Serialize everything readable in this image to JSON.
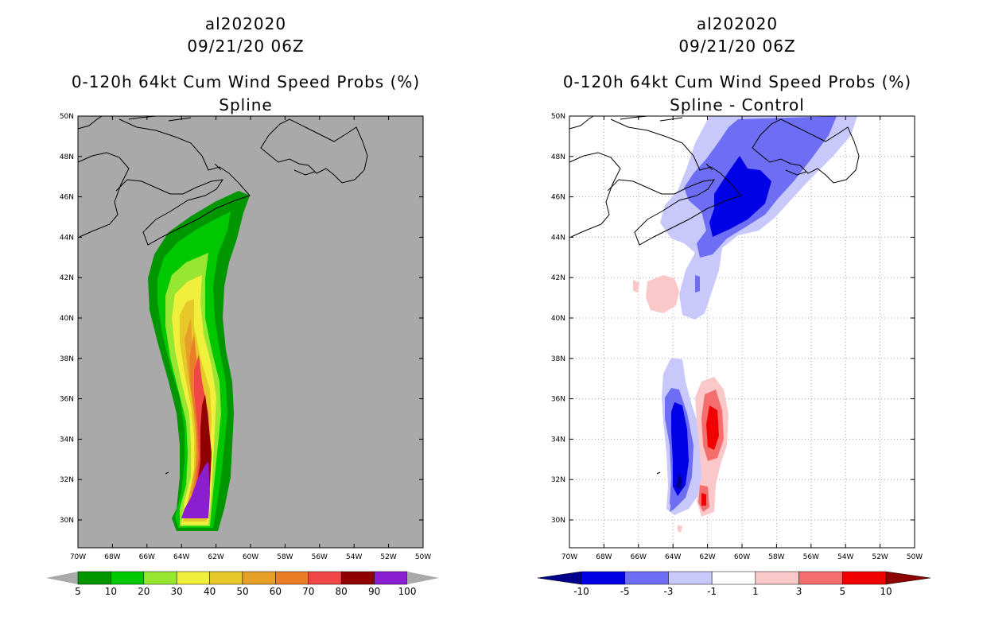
{
  "left": {
    "storm_id": "al202020",
    "datetime": "09/21/20 06Z",
    "product": "0-120h 64kt Cum Wind Speed Probs (%)",
    "subtitle": "Spline",
    "colorbar": {
      "labels": [
        "5",
        "10",
        "20",
        "30",
        "40",
        "50",
        "60",
        "70",
        "80",
        "90",
        "100"
      ],
      "colors": [
        "#009600",
        "#00c800",
        "#96e632",
        "#f0f03c",
        "#e6c828",
        "#e6a028",
        "#eb7d28",
        "#f04646",
        "#910000",
        "#8c1ed2"
      ],
      "extend_color": "#a9a9a9"
    }
  },
  "right": {
    "storm_id": "al202020",
    "datetime": "09/21/20 06Z",
    "product": "0-120h 64kt Cum Wind Speed Probs (%)",
    "subtitle": "Spline - Control",
    "colorbar": {
      "labels": [
        "-10",
        "-5",
        "-3",
        "-1",
        "1",
        "3",
        "5",
        "10"
      ],
      "colors": [
        "#0000e6",
        "#6e6ef5",
        "#c8c8fa",
        "#ffffff",
        "#fac8c8",
        "#f56e6e",
        "#f00000"
      ],
      "low_extend": "#00008c",
      "high_extend": "#8c0000"
    }
  },
  "axes": {
    "lon_labels": [
      "70W",
      "68W",
      "66W",
      "64W",
      "62W",
      "60W",
      "58W",
      "56W",
      "54W",
      "52W",
      "50W"
    ],
    "lat_labels": [
      "30N",
      "32N",
      "34N",
      "36N",
      "38N",
      "40N",
      "42N",
      "44N",
      "46N",
      "48N",
      "50N"
    ]
  }
}
